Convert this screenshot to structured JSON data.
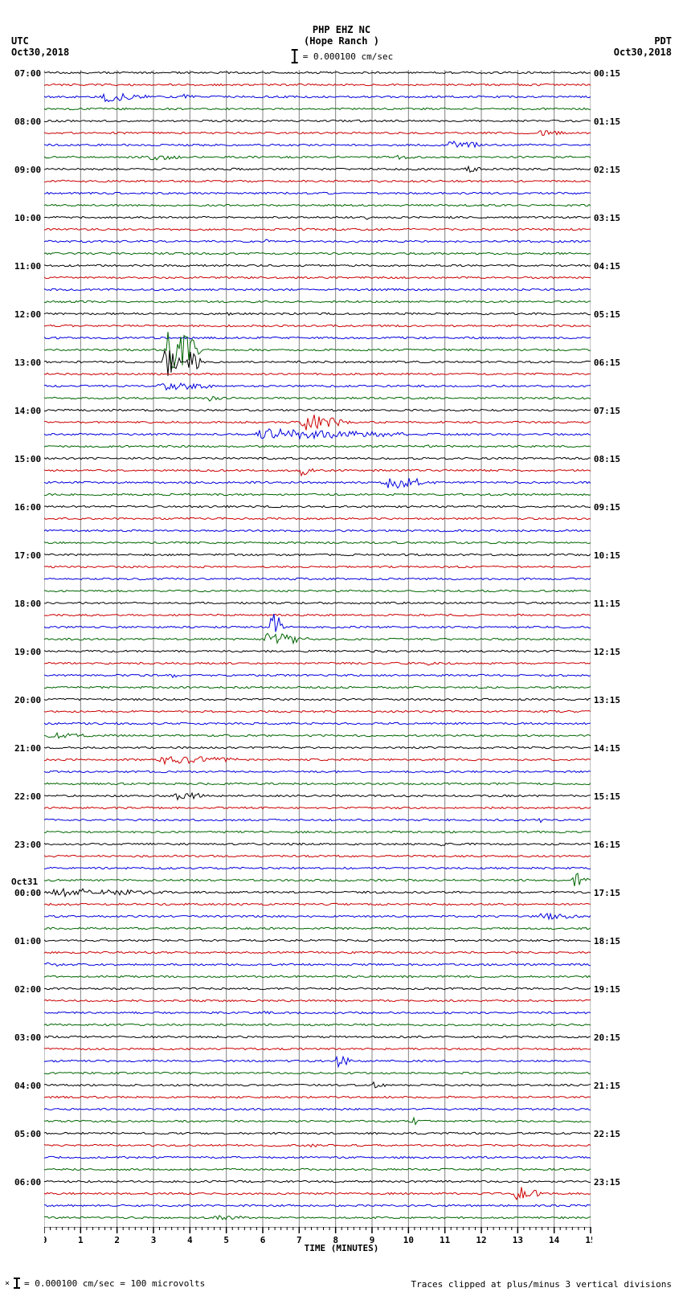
{
  "header": {
    "station_line1": "PHP EHZ NC",
    "station_line2": "(Hope Ranch )",
    "scale_text": "= 0.000100 cm/sec",
    "left_tz": "UTC",
    "left_date": "Oct30,2018",
    "right_tz": "PDT",
    "right_date": "Oct30,2018"
  },
  "footer": {
    "scale_text": "= 0.000100 cm/sec =   100 microvolts",
    "clip_text": "Traces clipped at plus/minus 3 vertical divisions"
  },
  "axis": {
    "xlabel": "TIME (MINUTES)",
    "x_ticks": [
      0,
      1,
      2,
      3,
      4,
      5,
      6,
      7,
      8,
      9,
      10,
      11,
      12,
      13,
      14,
      15
    ],
    "x_minor_per_major": 6
  },
  "plot": {
    "background": "#ffffff",
    "grid_color": "#808080",
    "grid_width": 1,
    "trace_colors": [
      "#000000",
      "#cc0000",
      "#0000dd",
      "#006600"
    ],
    "left_labels": [
      "07:00",
      "",
      "",
      "",
      "08:00",
      "",
      "",
      "",
      "09:00",
      "",
      "",
      "",
      "10:00",
      "",
      "",
      "",
      "11:00",
      "",
      "",
      "",
      "12:00",
      "",
      "",
      "",
      "13:00",
      "",
      "",
      "",
      "14:00",
      "",
      "",
      "",
      "15:00",
      "",
      "",
      "",
      "16:00",
      "",
      "",
      "",
      "17:00",
      "",
      "",
      "",
      "18:00",
      "",
      "",
      "",
      "19:00",
      "",
      "",
      "",
      "20:00",
      "",
      "",
      "",
      "21:00",
      "",
      "",
      "",
      "22:00",
      "",
      "",
      "",
      "23:00",
      "",
      "",
      "",
      "00:00",
      "",
      "",
      "",
      "01:00",
      "",
      "",
      "",
      "02:00",
      "",
      "",
      "",
      "03:00",
      "",
      "",
      "",
      "04:00",
      "",
      "",
      "",
      "05:00",
      "",
      "",
      "",
      "06:00",
      "",
      "",
      ""
    ],
    "left_date_change": {
      "index": 68,
      "text": "Oct31"
    },
    "right_labels": [
      "00:15",
      "",
      "",
      "",
      "01:15",
      "",
      "",
      "",
      "02:15",
      "",
      "",
      "",
      "03:15",
      "",
      "",
      "",
      "04:15",
      "",
      "",
      "",
      "05:15",
      "",
      "",
      "",
      "06:15",
      "",
      "",
      "",
      "07:15",
      "",
      "",
      "",
      "08:15",
      "",
      "",
      "",
      "09:15",
      "",
      "",
      "",
      "10:15",
      "",
      "",
      "",
      "11:15",
      "",
      "",
      "",
      "12:15",
      "",
      "",
      "",
      "13:15",
      "",
      "",
      "",
      "14:15",
      "",
      "",
      "",
      "15:15",
      "",
      "",
      "",
      "16:15",
      "",
      "",
      "",
      "17:15",
      "",
      "",
      "",
      "18:15",
      "",
      "",
      "",
      "19:15",
      "",
      "",
      "",
      "20:15",
      "",
      "",
      "",
      "21:15",
      "",
      "",
      "",
      "22:15",
      "",
      "",
      "",
      "23:15",
      "",
      "",
      ""
    ],
    "n_traces": 96,
    "trace_spacing": 15,
    "noise_amplitude": 1.2,
    "events": [
      {
        "trace": 2,
        "start": 1.5,
        "end": 3.2,
        "amp": 7
      },
      {
        "trace": 2,
        "start": 3.8,
        "end": 4.2,
        "amp": 4
      },
      {
        "trace": 5,
        "start": 13.5,
        "end": 14.5,
        "amp": 5
      },
      {
        "trace": 6,
        "start": 11.0,
        "end": 12.5,
        "amp": 6
      },
      {
        "trace": 7,
        "start": 2.8,
        "end": 4.0,
        "amp": 5
      },
      {
        "trace": 7,
        "start": 9.5,
        "end": 10.5,
        "amp": 4
      },
      {
        "trace": 8,
        "start": 11.5,
        "end": 12.2,
        "amp": 5
      },
      {
        "trace": 12,
        "start": 8.8,
        "end": 9.2,
        "amp": 5
      },
      {
        "trace": 13,
        "start": 7.0,
        "end": 7.5,
        "amp": 3
      },
      {
        "trace": 14,
        "start": 6.0,
        "end": 6.5,
        "amp": 3
      },
      {
        "trace": 20,
        "start": 5.0,
        "end": 5.3,
        "amp": 3
      },
      {
        "trace": 23,
        "start": 3.3,
        "end": 4.4,
        "amp": 35
      },
      {
        "trace": 24,
        "start": 3.2,
        "end": 3.8,
        "amp": 25
      },
      {
        "trace": 24,
        "start": 3.9,
        "end": 4.5,
        "amp": 15
      },
      {
        "trace": 26,
        "start": 3.0,
        "end": 5.5,
        "amp": 6
      },
      {
        "trace": 27,
        "start": 4.5,
        "end": 5.0,
        "amp": 5
      },
      {
        "trace": 29,
        "start": 7.0,
        "end": 8.5,
        "amp": 12
      },
      {
        "trace": 30,
        "start": 5.5,
        "end": 11.0,
        "amp": 8
      },
      {
        "trace": 31,
        "start": 10.5,
        "end": 11.0,
        "amp": 3
      },
      {
        "trace": 33,
        "start": 7.0,
        "end": 7.5,
        "amp": 8
      },
      {
        "trace": 34,
        "start": 9.2,
        "end": 11.0,
        "amp": 10
      },
      {
        "trace": 46,
        "start": 6.2,
        "end": 6.6,
        "amp": 30
      },
      {
        "trace": 47,
        "start": 6.0,
        "end": 7.5,
        "amp": 10
      },
      {
        "trace": 49,
        "start": 10.5,
        "end": 11.0,
        "amp": 3
      },
      {
        "trace": 50,
        "start": 3.5,
        "end": 3.9,
        "amp": 4
      },
      {
        "trace": 55,
        "start": 0.0,
        "end": 1.8,
        "amp": 4
      },
      {
        "trace": 57,
        "start": 3.0,
        "end": 6.0,
        "amp": 6
      },
      {
        "trace": 60,
        "start": 3.5,
        "end": 4.8,
        "amp": 6
      },
      {
        "trace": 62,
        "start": 13.5,
        "end": 14.0,
        "amp": 4
      },
      {
        "trace": 64,
        "start": 10.8,
        "end": 11.2,
        "amp": 3
      },
      {
        "trace": 67,
        "start": 14.5,
        "end": 15.0,
        "amp": 12
      },
      {
        "trace": 68,
        "start": 0.0,
        "end": 4.0,
        "amp": 6
      },
      {
        "trace": 70,
        "start": 13.5,
        "end": 15.0,
        "amp": 6
      },
      {
        "trace": 74,
        "start": 0.0,
        "end": 1.0,
        "amp": 3
      },
      {
        "trace": 78,
        "start": 6.0,
        "end": 6.5,
        "amp": 3
      },
      {
        "trace": 82,
        "start": 8.0,
        "end": 8.5,
        "amp": 12
      },
      {
        "trace": 84,
        "start": 9.0,
        "end": 9.5,
        "amp": 5
      },
      {
        "trace": 87,
        "start": 10.0,
        "end": 10.5,
        "amp": 6
      },
      {
        "trace": 89,
        "start": 7.3,
        "end": 7.7,
        "amp": 4
      },
      {
        "trace": 89,
        "start": 12.8,
        "end": 13.3,
        "amp": 5
      },
      {
        "trace": 93,
        "start": 12.8,
        "end": 13.8,
        "amp": 12
      },
      {
        "trace": 95,
        "start": 4.5,
        "end": 7.0,
        "amp": 3
      }
    ]
  }
}
